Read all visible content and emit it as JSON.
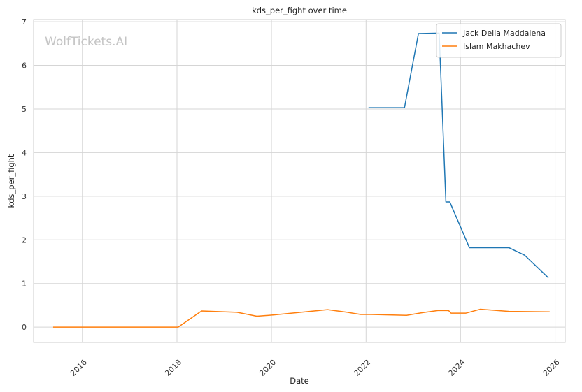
{
  "chart_data": {
    "type": "line",
    "title": "kds_per_fight over time",
    "xlabel": "Date",
    "ylabel": "kds_per_fight",
    "watermark": "WolfTickets.AI",
    "xlim": [
      "2014-12-20",
      "2026-03-20"
    ],
    "ylim": [
      -0.35,
      7.05
    ],
    "x_ticks": [
      "2016-01-01",
      "2018-01-01",
      "2020-01-01",
      "2022-01-01",
      "2024-01-01",
      "2026-01-01"
    ],
    "x_tick_labels": [
      "2016",
      "2018",
      "2020",
      "2022",
      "2024",
      "2026"
    ],
    "y_ticks": [
      0,
      1,
      2,
      3,
      4,
      5,
      6,
      7
    ],
    "y_tick_labels": [
      "0",
      "1",
      "2",
      "3",
      "4",
      "5",
      "6",
      "7"
    ],
    "grid": true,
    "legend_position": "top-right",
    "series": [
      {
        "name": "Jack Della Maddalena",
        "color": "#1f77b4",
        "points": [
          [
            "2022-01-20",
            5.03
          ],
          [
            "2022-10-25",
            5.03
          ],
          [
            "2023-02-10",
            6.73
          ],
          [
            "2023-07-20",
            6.74
          ],
          [
            "2023-09-10",
            2.87
          ],
          [
            "2023-10-10",
            2.87
          ],
          [
            "2024-03-10",
            1.82
          ],
          [
            "2025-01-10",
            1.82
          ],
          [
            "2025-05-10",
            1.65
          ],
          [
            "2025-11-10",
            1.13
          ]
        ]
      },
      {
        "name": "Islam Makhachev",
        "color": "#ff7f0e",
        "points": [
          [
            "2015-05-20",
            0.0
          ],
          [
            "2018-01-10",
            0.0
          ],
          [
            "2018-07-10",
            0.37
          ],
          [
            "2019-04-10",
            0.34
          ],
          [
            "2019-09-10",
            0.25
          ],
          [
            "2020-01-20",
            0.28
          ],
          [
            "2021-03-10",
            0.4
          ],
          [
            "2021-08-10",
            0.34
          ],
          [
            "2021-11-20",
            0.29
          ],
          [
            "2022-02-10",
            0.29
          ],
          [
            "2022-11-10",
            0.27
          ],
          [
            "2023-03-10",
            0.33
          ],
          [
            "2023-07-10",
            0.38
          ],
          [
            "2023-10-01",
            0.38
          ],
          [
            "2023-10-20",
            0.32
          ],
          [
            "2024-02-10",
            0.32
          ],
          [
            "2024-06-01",
            0.41
          ],
          [
            "2025-01-10",
            0.36
          ],
          [
            "2025-11-20",
            0.35
          ]
        ]
      }
    ]
  }
}
